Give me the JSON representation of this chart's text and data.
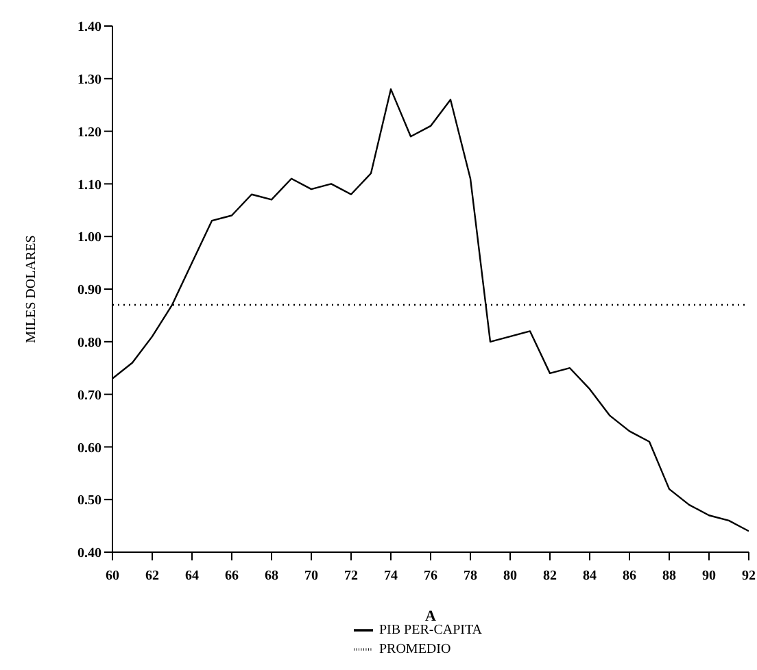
{
  "chart_data": {
    "type": "line",
    "xlabel": "A",
    "ylabel": "MILES DOLARES",
    "x": [
      60,
      61,
      62,
      63,
      64,
      65,
      66,
      67,
      68,
      69,
      70,
      71,
      72,
      73,
      74,
      75,
      76,
      77,
      78,
      79,
      80,
      81,
      82,
      83,
      84,
      85,
      86,
      87,
      88,
      89,
      90,
      91,
      92
    ],
    "series": [
      {
        "name": "PIB PER-CAPITA",
        "color": "#000000",
        "line_style": "solid",
        "values": [
          0.73,
          0.76,
          0.81,
          0.87,
          0.95,
          1.03,
          1.04,
          1.08,
          1.07,
          1.11,
          1.09,
          1.1,
          1.08,
          1.12,
          1.28,
          1.19,
          1.21,
          1.26,
          1.11,
          0.8,
          0.81,
          0.82,
          0.74,
          0.75,
          0.71,
          0.66,
          0.63,
          0.61,
          0.52,
          0.49,
          0.47,
          0.46,
          0.44
        ]
      },
      {
        "name": "PROMEDIO",
        "color": "#000000",
        "line_style": "dotted",
        "x": [
          60,
          92
        ],
        "values": [
          0.87,
          0.87
        ]
      }
    ],
    "xlim": [
      60,
      92
    ],
    "xticks": [
      60,
      62,
      64,
      66,
      68,
      70,
      72,
      74,
      76,
      78,
      80,
      82,
      84,
      86,
      88,
      90,
      92
    ],
    "ylim": [
      0.4,
      1.4
    ],
    "yticks": [
      {
        "value": 0.4,
        "label": "0.40"
      },
      {
        "value": 0.5,
        "label": "0.50"
      },
      {
        "value": 0.6,
        "label": "0.60"
      },
      {
        "value": 0.7,
        "label": "0.70"
      },
      {
        "value": 0.8,
        "label": "0.80"
      },
      {
        "value": 0.9,
        "label": "0.90"
      },
      {
        "value": 1.0,
        "label": "1.00"
      },
      {
        "value": 1.1,
        "label": "1.10"
      },
      {
        "value": 1.2,
        "label": "1.20"
      },
      {
        "value": 1.3,
        "label": "1.30"
      },
      {
        "value": 1.4,
        "label": "1.40"
      }
    ],
    "grid": false,
    "legend": "bottom",
    "marker": "none"
  }
}
